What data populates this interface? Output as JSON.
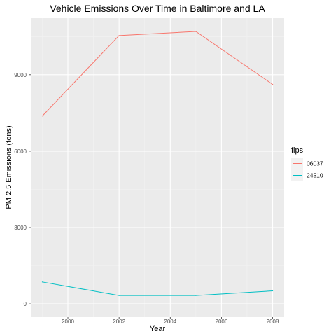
{
  "chart_data": {
    "type": "line",
    "title": "Vehicle Emissions Over Time in Baltimore and LA",
    "xlabel": "Year",
    "ylabel": "PM 2.5 Emissions (tons)",
    "x": [
      1999,
      2002,
      2005,
      2008
    ],
    "xlim": [
      1998.55,
      2008.45
    ],
    "ylim": [
      -520,
      11250
    ],
    "x_ticks": [
      2000,
      2002,
      2004,
      2006,
      2008
    ],
    "y_ticks": [
      0,
      3000,
      6000,
      9000
    ],
    "x_tick_labels": [
      "2000",
      "2002",
      "2004",
      "2006",
      "2008"
    ],
    "y_tick_labels": [
      "0",
      "3000",
      "6000",
      "9000"
    ],
    "grid": true,
    "legend": {
      "title": "fips",
      "position": "right"
    },
    "series": [
      {
        "name": "06037",
        "color": "#F8766D",
        "values": [
          7380,
          10540,
          10700,
          8620
        ]
      },
      {
        "name": "24510",
        "color": "#00BFC4",
        "values": [
          860,
          330,
          330,
          510
        ]
      }
    ]
  }
}
